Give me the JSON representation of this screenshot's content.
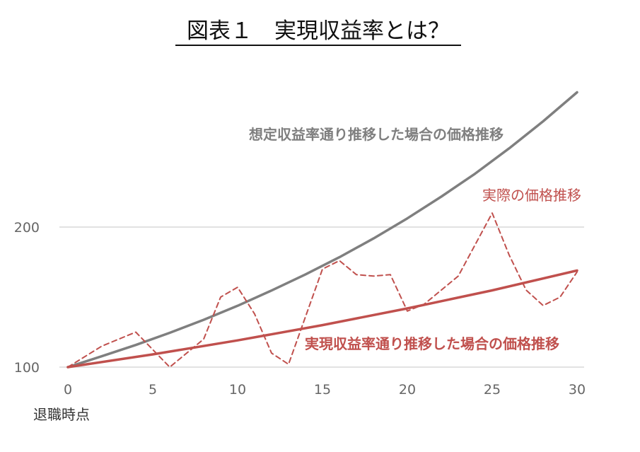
{
  "chart_data": {
    "type": "line",
    "title": "図表１　実現収益率とは？",
    "xlabel": "退職時点",
    "ylabel": "",
    "xlim": [
      0,
      30
    ],
    "ylim": [
      100,
      300
    ],
    "x_ticks": [
      0,
      5,
      10,
      15,
      20,
      25,
      30
    ],
    "y_ticks": [
      100,
      200
    ],
    "grid": "horizontal",
    "series": [
      {
        "name": "想定収益率通り推移した場合の価格推移",
        "color": "#7f7f7f",
        "style": "solid",
        "x": [
          0,
          2,
          4,
          6,
          8,
          10,
          12,
          14,
          16,
          18,
          20,
          22,
          24,
          26,
          28,
          30
        ],
        "y": [
          100,
          107.8,
          115.8,
          124.5,
          133.8,
          143.8,
          154.7,
          166.2,
          178.5,
          191.8,
          206.2,
          221.7,
          238.2,
          256.2,
          275.5,
          296.2
        ]
      },
      {
        "name": "実際の価格推移",
        "color": "#c0504d",
        "style": "dashed",
        "x": [
          0,
          2,
          4,
          6,
          8,
          9,
          10,
          11,
          12,
          13,
          15,
          16,
          17,
          18,
          19,
          20,
          21,
          22,
          23,
          25,
          26,
          27,
          28,
          29,
          30
        ],
        "y": [
          100,
          115,
          125,
          100,
          120,
          150,
          157,
          138,
          110,
          102,
          170,
          176,
          166,
          165,
          166,
          140,
          145,
          155,
          165,
          210,
          180,
          155,
          144,
          150,
          168
        ]
      },
      {
        "name": "実現収益率通り推移した場合の価格推移",
        "color": "#c0504d",
        "style": "solid",
        "x": [
          0,
          5,
          10,
          15,
          20,
          25,
          30
        ],
        "y": [
          100,
          109.1,
          119.1,
          130.0,
          141.9,
          154.8,
          169
        ]
      }
    ]
  }
}
